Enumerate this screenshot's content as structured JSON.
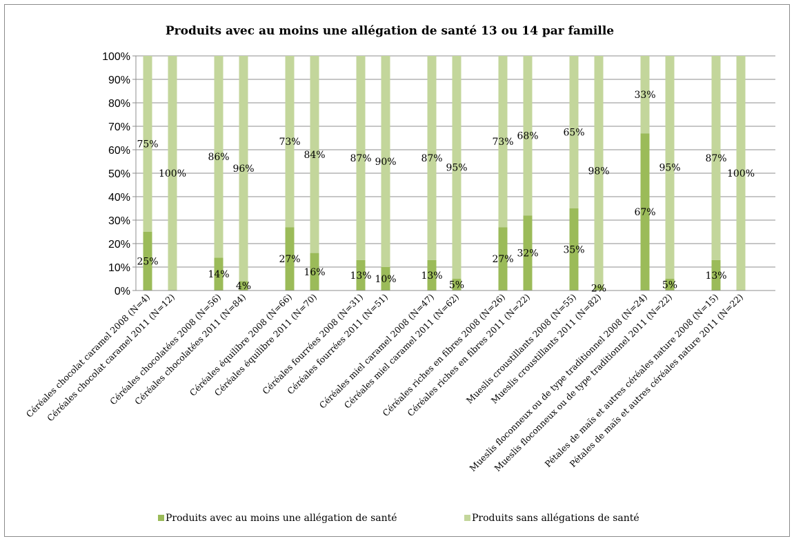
{
  "chart_data": {
    "type": "bar",
    "stacked": true,
    "title": "Produits avec au moins une allégation de santé 13 ou 14 par famille",
    "xlabel": "",
    "ylabel": "",
    "ylim": [
      0,
      100
    ],
    "y_tick_labels": [
      "0%",
      "10%",
      "20%",
      "30%",
      "40%",
      "50%",
      "60%",
      "70%",
      "80%",
      "90%",
      "100%"
    ],
    "grid": true,
    "legend_position": "bottom",
    "categories": [
      "Céréales chocolat caramel 2008 (N=4)",
      "Céréales chocolat caramel 2011 (N=12)",
      "Céréales chocolatées 2008 (N=56)",
      "Céréales chocolatées 2011 (N=84)",
      "Céréales équilibre 2008 (N=66)",
      "Céréales équilibre 2011 (N=70)",
      "Céréales fourrées 2008 (N=31)",
      "Céréales fourrées 2011 (N=51)",
      "Céréales miel caramel 2008 (N=47)",
      "Céréales miel caramel 2011 (N=62)",
      "Céréales riches en fibres 2008 (N=26)",
      "Céréales riches en fibres 2011 (N=22)",
      "Mueslis croustillants 2008 (N=55)",
      "Mueslis croustillants 2011 (N=82)",
      "Mueslis floconneux ou de type traditionnel 2008 (N=24)",
      "Mueslis floconneux ou de type traditionnel 2011 (N=22)",
      "Pétales de maïs et autres céréales nature 2008 (N=15)",
      "Pétales de maïs et autres céréales nature 2011 (N=22)"
    ],
    "series": [
      {
        "name": "Produits avec au moins une allégation de santé",
        "color": "#9bbb59",
        "values": [
          25,
          0,
          14,
          4,
          27,
          16,
          13,
          10,
          13,
          5,
          27,
          32,
          35,
          2,
          67,
          5,
          13,
          0
        ],
        "labels": [
          "25%",
          "",
          "14%",
          "4%",
          "27%",
          "16%",
          "13%",
          "10%",
          "13%",
          "5%",
          "27%",
          "32%",
          "35%",
          "2%",
          "67%",
          "5%",
          "13%",
          ""
        ]
      },
      {
        "name": "Produits sans allégations de santé",
        "color": "#c3d69b",
        "values": [
          75,
          100,
          86,
          96,
          73,
          84,
          87,
          90,
          87,
          95,
          73,
          68,
          65,
          98,
          33,
          95,
          87,
          100
        ],
        "labels": [
          "75%",
          "100%",
          "86%",
          "96%",
          "73%",
          "84%",
          "87%",
          "90%",
          "87%",
          "95%",
          "73%",
          "68%",
          "65%",
          "98%",
          "33%",
          "95%",
          "87%",
          "100%"
        ]
      }
    ]
  }
}
